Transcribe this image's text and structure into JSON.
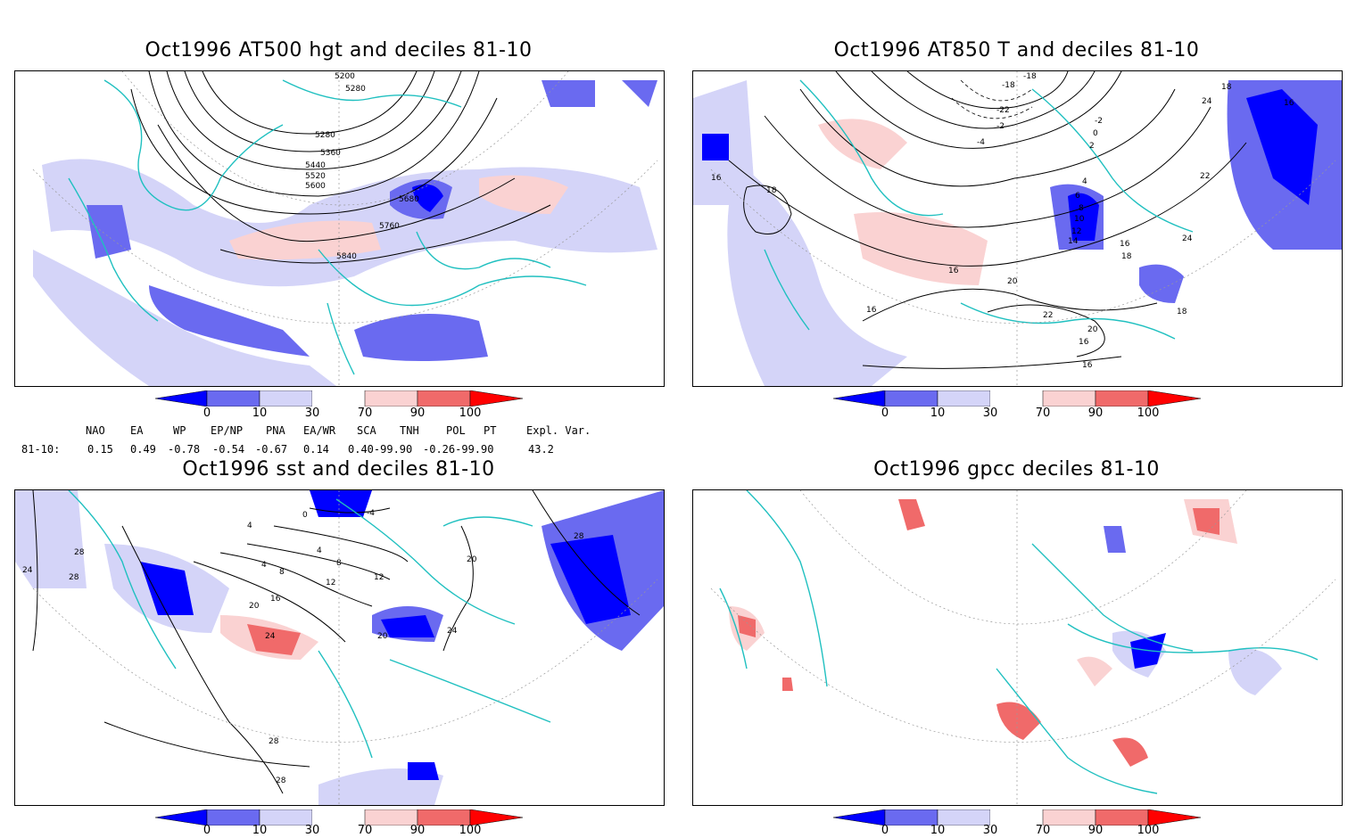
{
  "panels": {
    "hgt": {
      "title": "Oct1996 AT500 hgt and deciles 81-10",
      "contour_labels": [
        "5200",
        "5280",
        "5280",
        "5360",
        "5440",
        "5520",
        "5600",
        "5680",
        "5760",
        "5840"
      ]
    },
    "t850": {
      "title": "Oct1996 AT850 T and deciles 81-10",
      "contour_labels": [
        "-18",
        "-18",
        "-22",
        "-4",
        "-2",
        "0",
        "2",
        "-2",
        "4",
        "6",
        "8",
        "10",
        "12",
        "14",
        "16",
        "16",
        "18",
        "16",
        "18",
        "20",
        "22",
        "22",
        "20",
        "24",
        "16",
        "16",
        "16",
        "16",
        "18",
        "18",
        "24"
      ]
    },
    "sst": {
      "title": "Oct1996 sst and deciles 81-10",
      "contour_labels": [
        "0",
        "-4",
        "4",
        "4",
        "8",
        "8",
        "4",
        "12",
        "12",
        "16",
        "20",
        "20",
        "24",
        "24",
        "28",
        "28",
        "28",
        "28",
        "28",
        "24",
        "20"
      ]
    },
    "gpcc": {
      "title": "Oct1996 gpcc deciles 81-10"
    }
  },
  "colorbar": {
    "ticks": [
      "0",
      "10",
      "30",
      "70",
      "90",
      "100"
    ],
    "colors": {
      "below_10": "#0000ff",
      "10_30": "#6a6af0",
      "30_50": "#d4d4f8",
      "neutral": "#ffffff",
      "70_90": "#fad2d2",
      "90_100": "#f06a6a",
      "above_100": "#ff0000"
    }
  },
  "indices": {
    "headers": [
      "NAO",
      "EA",
      "WP",
      "EP/NP",
      "PNA",
      "EA/WR",
      "SCA",
      "TNH",
      "POL",
      "PT",
      "Expl. Var."
    ],
    "row_label": "81-10:",
    "values": [
      "0.15",
      "0.49",
      "-0.78",
      "-0.54",
      "-0.67",
      "0.14",
      "0.40-99.90",
      "-0.26-99.90",
      "43.2"
    ]
  },
  "style": {
    "coastline": "#20c0c0",
    "grid": "#999999"
  }
}
